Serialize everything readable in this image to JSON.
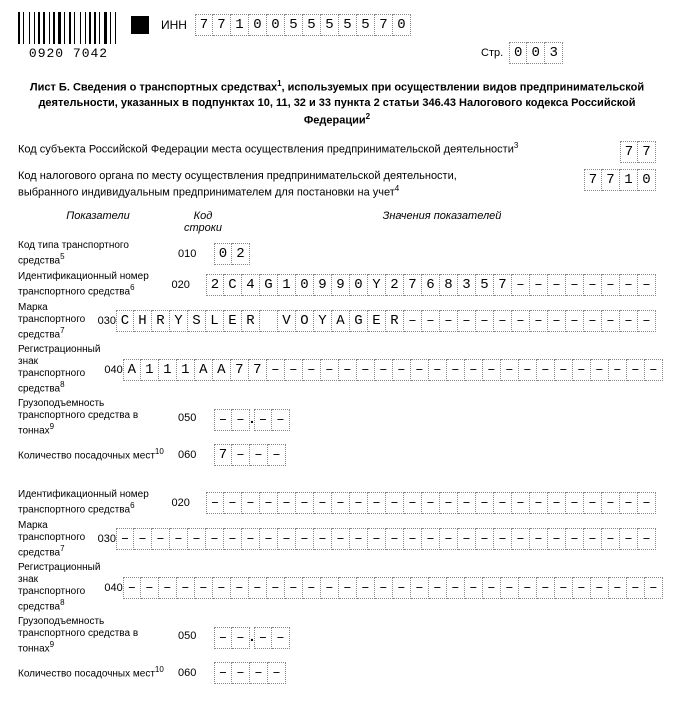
{
  "barcode_number": "0920 7042",
  "inn_label": "ИНН",
  "inn": [
    "7",
    "7",
    "1",
    "0",
    "0",
    "5",
    "5",
    "5",
    "5",
    "5",
    "7",
    "0"
  ],
  "page_label": "Стр.",
  "page": [
    "0",
    "0",
    "3"
  ],
  "title_line1": "Лист Б. Сведения о транспортных средствах",
  "title_sup1": "1",
  "title_line1b": ", используемых при осуществлении видов предпринимательской",
  "title_line2": "деятельности, указанных в подпунктах 10, 11, 32 и 33 пункта 2 статьи 346.43 Налогового кодекса Российской Федерации",
  "title_sup2": "2",
  "subject_label": "Код субъекта Российской Федерации места осуществления предпринимательской деятельности",
  "subject_sup": "3",
  "subject_code": [
    "7",
    "7"
  ],
  "tax_label_1": "Код налогового органа по месту осуществления предпринимательской деятельности,",
  "tax_label_2": "выбранного индивидуальным предпринимателем для постановки на учет",
  "tax_sup": "4",
  "tax_code": [
    "7",
    "7",
    "1",
    "0"
  ],
  "header_col1": "Показатели",
  "header_col2": "Код строки",
  "header_col3": "Значения показателей",
  "rows_block1": [
    {
      "label": "Код типа транспортного средства",
      "sup": "5",
      "code": "010",
      "cells": [
        "0",
        "2"
      ],
      "len": 2
    },
    {
      "label": "Идентификационный номер транспортного средства",
      "sup": "6",
      "code": "020",
      "cells": [
        "2",
        "C",
        "4",
        "G",
        "1",
        "0",
        "9",
        "9",
        "0",
        "Y",
        "2",
        "7",
        "6",
        "8",
        "3",
        "5",
        "7",
        "–",
        "–",
        "–",
        "–",
        "–",
        "–",
        "–",
        "–"
      ],
      "len": 25
    },
    {
      "label": "Марка транспортного средства",
      "sup": "7",
      "code": "030",
      "cells": [
        "C",
        "H",
        "R",
        "Y",
        "S",
        "L",
        "E",
        "R",
        " ",
        "V",
        "O",
        "Y",
        "A",
        "G",
        "E",
        "R",
        "–",
        "–",
        "–",
        "–",
        "–",
        "–",
        "–",
        "–",
        "–",
        "–",
        "–",
        "–",
        "–",
        "–"
      ],
      "len": 30
    },
    {
      "label": "Регистрационный знак транспортного средства",
      "sup": "8",
      "code": "040",
      "cells": [
        "A",
        "1",
        "1",
        "1",
        "A",
        "A",
        "7",
        "7",
        "–",
        "–",
        "–",
        "–",
        "–",
        "–",
        "–",
        "–",
        "–",
        "–",
        "–",
        "–",
        "–",
        "–",
        "–",
        "–",
        "–",
        "–",
        "–",
        "–",
        "–",
        "–"
      ],
      "len": 30
    },
    {
      "label": "Грузоподъемность транспортного средства в тоннах",
      "sup": "9",
      "code": "050",
      "cells_a": [
        "–",
        "–"
      ],
      "cells_b": [
        "–",
        "–"
      ],
      "split": true
    },
    {
      "label": "Количество посадочных мест",
      "sup": "10",
      "code": "060",
      "cells": [
        "7",
        "–",
        "–",
        "–"
      ],
      "len": 4
    }
  ],
  "rows_block2": [
    {
      "label": "Идентификационный номер транспортного средства",
      "sup": "6",
      "code": "020",
      "cells": [
        "–",
        "–",
        "–",
        "–",
        "–",
        "–",
        "–",
        "–",
        "–",
        "–",
        "–",
        "–",
        "–",
        "–",
        "–",
        "–",
        "–",
        "–",
        "–",
        "–",
        "–",
        "–",
        "–",
        "–",
        "–"
      ],
      "len": 25
    },
    {
      "label": "Марка транспортного средства",
      "sup": "7",
      "code": "030",
      "cells": [
        "–",
        "–",
        "–",
        "–",
        "–",
        "–",
        "–",
        "–",
        "–",
        "–",
        "–",
        "–",
        "–",
        "–",
        "–",
        "–",
        "–",
        "–",
        "–",
        "–",
        "–",
        "–",
        "–",
        "–",
        "–",
        "–",
        "–",
        "–",
        "–",
        "–"
      ],
      "len": 30
    },
    {
      "label": "Регистрационный знак транспортного средства",
      "sup": "8",
      "code": "040",
      "cells": [
        "–",
        "–",
        "–",
        "–",
        "–",
        "–",
        "–",
        "–",
        "–",
        "–",
        "–",
        "–",
        "–",
        "–",
        "–",
        "–",
        "–",
        "–",
        "–",
        "–",
        "–",
        "–",
        "–",
        "–",
        "–",
        "–",
        "–",
        "–",
        "–",
        "–"
      ],
      "len": 30
    },
    {
      "label": "Грузоподъемность транспортного средства в тоннах",
      "sup": "9",
      "code": "050",
      "cells_a": [
        "–",
        "–"
      ],
      "cells_b": [
        "–",
        "–"
      ],
      "split": true
    },
    {
      "label": "Количество посадочных мест",
      "sup": "10",
      "code": "060",
      "cells": [
        "–",
        "–",
        "–",
        "–"
      ],
      "len": 4
    }
  ],
  "barcode_widths": [
    2,
    1,
    1,
    3,
    1,
    2,
    1,
    1,
    2,
    1,
    2,
    2,
    1,
    1,
    2,
    1,
    3,
    1,
    1,
    2,
    2,
    1,
    1,
    3,
    1,
    2,
    1,
    1,
    2,
    1,
    2,
    1,
    1,
    2,
    3,
    1,
    1,
    2,
    1,
    2
  ]
}
